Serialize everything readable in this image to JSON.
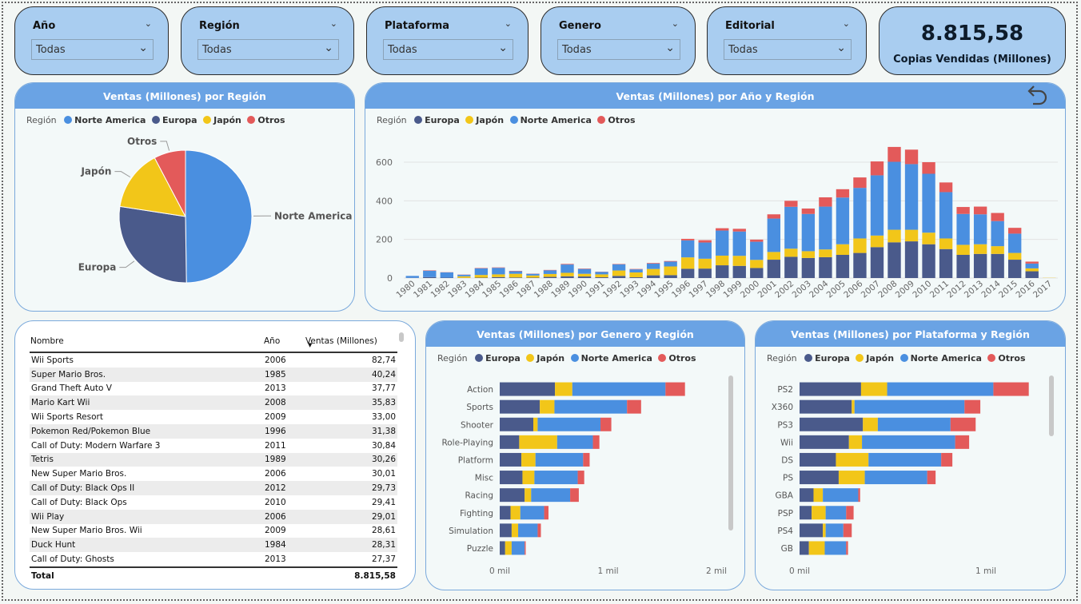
{
  "filters": [
    {
      "title": "Año",
      "value": "Todas"
    },
    {
      "title": "Región",
      "value": "Todas"
    },
    {
      "title": "Plataforma",
      "value": "Todas"
    },
    {
      "title": "Genero",
      "value": "Todas"
    },
    {
      "title": "Editorial",
      "value": "Todas"
    }
  ],
  "kpi": {
    "value": "8.815,58",
    "label": "Copias Vendidas (Millones)"
  },
  "legend_title": "Región",
  "colors": {
    "europa": "#4a5a8b",
    "japon": "#f2c619",
    "norte": "#4a8fe0",
    "otros": "#e35a5a"
  },
  "region_order_pie": [
    "Norte America",
    "Europa",
    "Japón",
    "Otros"
  ],
  "region_order_bar": [
    "Europa",
    "Japón",
    "Norte America",
    "Otros"
  ],
  "table": {
    "headers": [
      "Nombre",
      "Año",
      "Ventas (Millones)"
    ],
    "rows": [
      [
        "Wii Sports",
        "2006",
        "82,74"
      ],
      [
        "Super Mario Bros.",
        "1985",
        "40,24"
      ],
      [
        "Grand Theft Auto V",
        "2013",
        "37,77"
      ],
      [
        "Mario Kart Wii",
        "2008",
        "35,83"
      ],
      [
        "Wii Sports Resort",
        "2009",
        "33,00"
      ],
      [
        "Pokemon Red/Pokemon Blue",
        "1996",
        "31,38"
      ],
      [
        "Call of Duty: Modern Warfare 3",
        "2011",
        "30,84"
      ],
      [
        "Tetris",
        "1989",
        "30,26"
      ],
      [
        "New Super Mario Bros.",
        "2006",
        "30,01"
      ],
      [
        "Call of Duty: Black Ops II",
        "2012",
        "29,73"
      ],
      [
        "Call of Duty: Black Ops",
        "2010",
        "29,41"
      ],
      [
        "Wii Play",
        "2006",
        "29,01"
      ],
      [
        "New Super Mario Bros. Wii",
        "2009",
        "28,61"
      ],
      [
        "Duck Hunt",
        "1984",
        "28,31"
      ],
      [
        "Call of Duty: Ghosts",
        "2013",
        "27,37"
      ]
    ],
    "total_label": "Total",
    "total_value": "8.815,58"
  },
  "chart_data": [
    {
      "type": "pie",
      "title": "Ventas (Millones) por Región",
      "legend_title": "Región",
      "labels": [
        "Norte America",
        "Europa",
        "Japón",
        "Otros"
      ],
      "values": [
        4390,
        2440,
        1310,
        680
      ]
    },
    {
      "type": "bar",
      "stacked": true,
      "title": "Ventas (Millones) por Año y Región",
      "legend_title": "Región",
      "categories": [
        "1980",
        "1981",
        "1982",
        "1983",
        "1984",
        "1985",
        "1986",
        "1987",
        "1988",
        "1989",
        "1990",
        "1991",
        "1992",
        "1993",
        "1994",
        "1995",
        "1996",
        "1997",
        "1998",
        "1999",
        "2000",
        "2001",
        "2002",
        "2003",
        "2004",
        "2005",
        "2006",
        "2007",
        "2008",
        "2009",
        "2010",
        "2011",
        "2012",
        "2013",
        "2014",
        "2015",
        "2016",
        "2017"
      ],
      "series": [
        {
          "name": "Europa",
          "values": [
            1,
            5,
            2,
            1,
            2,
            5,
            3,
            2,
            6,
            9,
            8,
            4,
            11,
            4,
            14,
            15,
            48,
            49,
            66,
            63,
            52,
            95,
            110,
            104,
            108,
            120,
            130,
            160,
            185,
            190,
            175,
            150,
            120,
            125,
            125,
            95,
            35,
            0
          ]
        },
        {
          "name": "Japón",
          "values": [
            0,
            0,
            0,
            8,
            14,
            14,
            19,
            11,
            15,
            18,
            14,
            15,
            28,
            25,
            33,
            45,
            59,
            51,
            50,
            52,
            42,
            40,
            42,
            35,
            40,
            55,
            75,
            60,
            65,
            60,
            60,
            55,
            52,
            50,
            40,
            35,
            15,
            1
          ]
        },
        {
          "name": "Norte America",
          "values": [
            10,
            33,
            27,
            8,
            34,
            34,
            13,
            9,
            19,
            43,
            25,
            13,
            32,
            16,
            28,
            25,
            88,
            84,
            130,
            126,
            94,
            173,
            217,
            193,
            222,
            242,
            262,
            312,
            352,
            340,
            305,
            240,
            160,
            155,
            130,
            100,
            25,
            0
          ]
        },
        {
          "name": "Otros",
          "values": [
            0,
            2,
            1,
            1,
            2,
            2,
            2,
            1,
            2,
            3,
            2,
            1,
            2,
            2,
            3,
            3,
            8,
            12,
            12,
            14,
            11,
            22,
            31,
            28,
            48,
            43,
            54,
            72,
            77,
            75,
            60,
            50,
            36,
            40,
            42,
            30,
            10,
            0
          ]
        }
      ],
      "ylim": [
        0,
        720
      ],
      "yticks": [
        0,
        200,
        400,
        600
      ]
    },
    {
      "type": "bar",
      "orientation": "horizontal",
      "stacked": true,
      "title": "Ventas (Millones) por Genero y Región",
      "legend_title": "Región",
      "categories": [
        "Action",
        "Sports",
        "Shooter",
        "Role-Playing",
        "Platform",
        "Misc",
        "Racing",
        "Fighting",
        "Simulation",
        "Puzzle"
      ],
      "series": [
        {
          "name": "Europa",
          "values": [
            510,
            370,
            310,
            180,
            200,
            210,
            230,
            100,
            110,
            50
          ]
        },
        {
          "name": "Japón",
          "values": [
            160,
            135,
            40,
            350,
            130,
            110,
            60,
            90,
            60,
            60
          ]
        },
        {
          "name": "Norte America",
          "values": [
            860,
            670,
            580,
            330,
            440,
            400,
            360,
            220,
            180,
            120
          ]
        },
        {
          "name": "Otros",
          "values": [
            180,
            130,
            100,
            60,
            60,
            60,
            80,
            40,
            30,
            10
          ]
        }
      ],
      "xlim": [
        0,
        2000
      ],
      "xticks_labels": [
        "0 mil",
        "1 mil",
        "2 mil"
      ]
    },
    {
      "type": "bar",
      "orientation": "horizontal",
      "stacked": true,
      "title": "Ventas (Millones) por Plataforma y Región",
      "legend_title": "Región",
      "categories": [
        "PS2",
        "X360",
        "PS3",
        "Wii",
        "DS",
        "PS",
        "GBA",
        "PSP",
        "PS4",
        "GB"
      ],
      "series": [
        {
          "name": "Europa",
          "values": [
            330,
            280,
            340,
            265,
            195,
            210,
            75,
            65,
            125,
            50
          ]
        },
        {
          "name": "Japón",
          "values": [
            140,
            15,
            80,
            70,
            175,
            140,
            50,
            75,
            15,
            85
          ]
        },
        {
          "name": "Norte America",
          "values": [
            570,
            590,
            390,
            500,
            390,
            335,
            190,
            110,
            95,
            115
          ]
        },
        {
          "name": "Otros",
          "values": [
            190,
            85,
            135,
            75,
            60,
            45,
            10,
            40,
            45,
            10
          ]
        }
      ],
      "xlim": [
        0,
        1300
      ],
      "xticks_labels": [
        "0 mil",
        "1 mil"
      ]
    }
  ]
}
